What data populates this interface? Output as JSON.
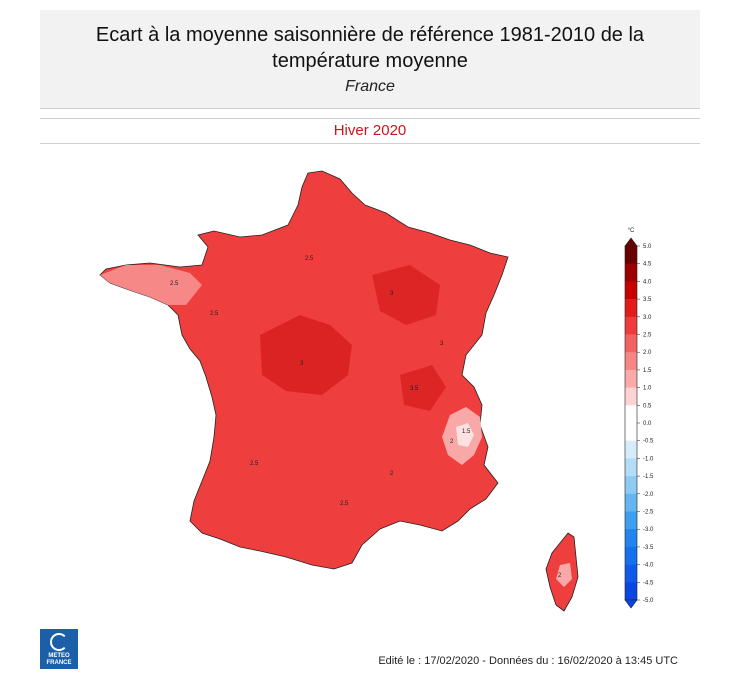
{
  "header": {
    "title_line1": "Ecart à la moyenne saisonnière de référence 1981-2010 de la",
    "title_line2": "température moyenne",
    "subtitle": "France"
  },
  "season": "Hiver 2020",
  "legend": {
    "unit": "°C",
    "ticks": [
      "5.0",
      "4.5",
      "4.0",
      "3.5",
      "3.0",
      "2.5",
      "2.0",
      "1.5",
      "1.0",
      "0.5",
      "0.0",
      "-0.5",
      "-1.0",
      "-1.5",
      "-2.0",
      "-2.5",
      "-3.0",
      "-3.5",
      "-4.0",
      "-4.5",
      "-5.0"
    ],
    "colors": [
      "#6b0000",
      "#9c0000",
      "#c80000",
      "#e21b1b",
      "#ef3b3b",
      "#f46161",
      "#f78585",
      "#fbaaaa",
      "#fdd2d2",
      "#ffffff",
      "#ffffff",
      "#d6ecfb",
      "#b3dcf7",
      "#8ecbf3",
      "#63b6ef",
      "#3d9ff0",
      "#2285ef",
      "#1570ef",
      "#0f5aeb",
      "#0b46e4"
    ]
  },
  "map_labels": [
    "2.5",
    "2.5",
    "3",
    "3",
    "3.5",
    "2.5",
    "2",
    "1.5",
    "2",
    "2.5",
    "3",
    "2.5",
    "2"
  ],
  "logo": {
    "line1": "METEO",
    "line2": "FRANCE"
  },
  "footer": "Edité le : 17/02/2020 - Données du : 16/02/2020 à 13:45 UTC"
}
